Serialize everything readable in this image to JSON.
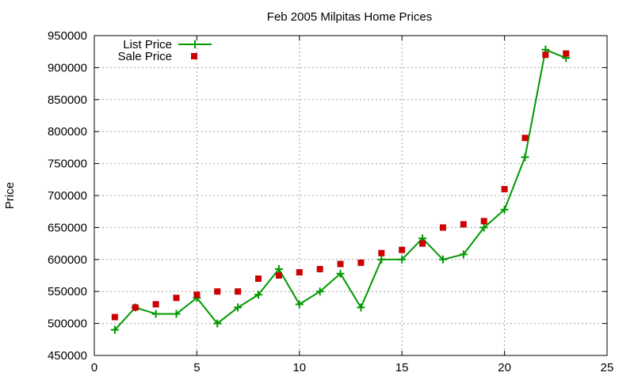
{
  "chart_data": {
    "type": "line",
    "title": "Feb 2005 Milpitas Home Prices",
    "xlabel": "",
    "ylabel": "Price",
    "xlim": [
      0,
      25
    ],
    "ylim": [
      450000,
      950000
    ],
    "xticks": [
      0,
      5,
      10,
      15,
      20,
      25
    ],
    "yticks": [
      450000,
      500000,
      550000,
      600000,
      650000,
      700000,
      750000,
      800000,
      850000,
      900000,
      950000
    ],
    "grid": true,
    "legend_position": "top-left",
    "series": [
      {
        "name": "List Price",
        "style": "line+cross",
        "color": "#009900",
        "x": [
          1,
          2,
          3,
          4,
          5,
          6,
          7,
          8,
          9,
          10,
          11,
          12,
          13,
          14,
          15,
          16,
          17,
          18,
          19,
          20,
          21,
          22,
          23
        ],
        "y": [
          490000,
          525000,
          515000,
          515000,
          540000,
          500000,
          525000,
          545000,
          585000,
          530000,
          550000,
          578000,
          525000,
          600000,
          600000,
          633000,
          600000,
          608000,
          650000,
          678000,
          760000,
          928000,
          915000
        ]
      },
      {
        "name": "Sale Price",
        "style": "square",
        "color": "#cc0000",
        "x": [
          1,
          2,
          3,
          4,
          5,
          6,
          7,
          8,
          9,
          10,
          11,
          12,
          13,
          14,
          15,
          16,
          17,
          18,
          19,
          20,
          21,
          22,
          23
        ],
        "y": [
          510000,
          525000,
          530000,
          540000,
          545000,
          550000,
          550000,
          570000,
          575000,
          580000,
          585000,
          593000,
          595000,
          610000,
          615000,
          625000,
          650000,
          655000,
          660000,
          710000,
          790000,
          920000,
          922000
        ]
      }
    ]
  }
}
